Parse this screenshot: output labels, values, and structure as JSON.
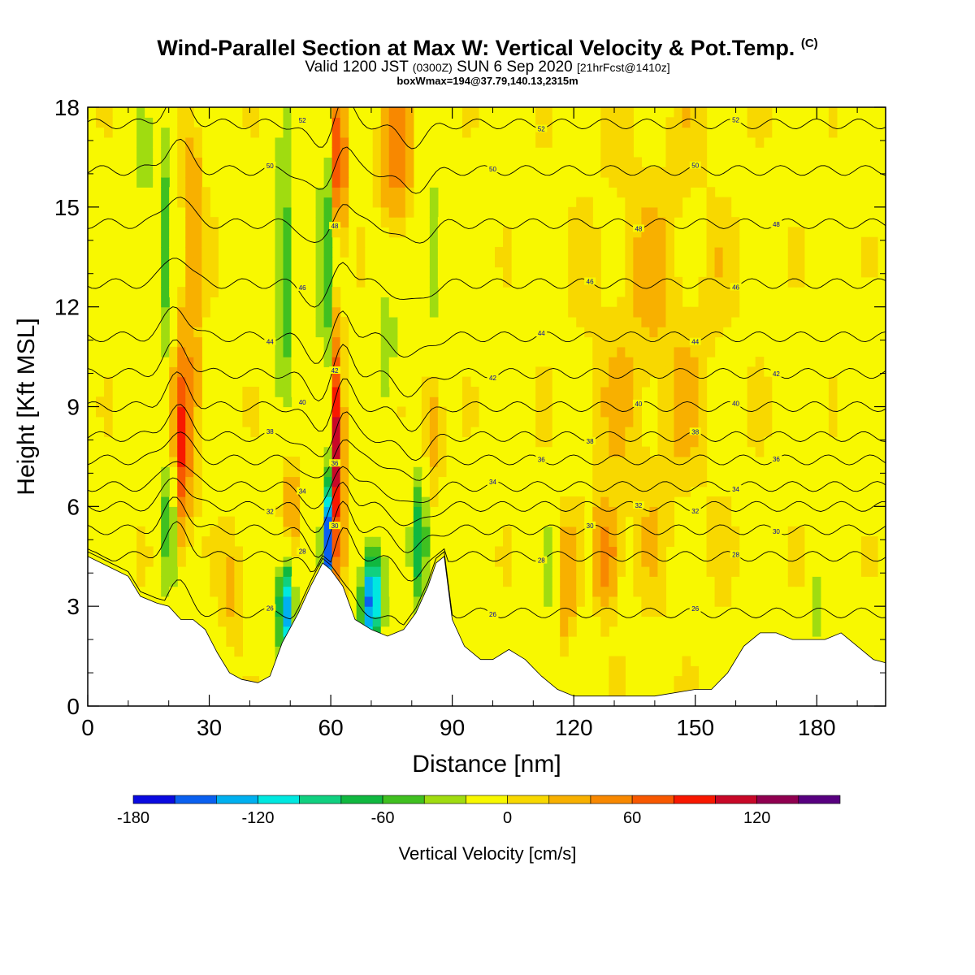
{
  "chart_data": {
    "type": "heatmap",
    "title": {
      "main": "Wind-Parallel Section at Max W: Vertical Velocity & Pot.Temp.",
      "copyright": "(C)",
      "valid_prefix": "Valid 1200 JST",
      "utc": "(0300Z)",
      "valid_date": "SUN 6 Sep 2020",
      "forecast": "[21hrFcst@1410z]",
      "box": "boxWmax=194@37.79,140.13,2315m"
    },
    "xlabel": "Distance [nm]",
    "ylabel": "Height [Kft MSL]",
    "xlim": [
      0,
      197
    ],
    "ylim": [
      0,
      18
    ],
    "x_ticks": [
      "0",
      "30",
      "60",
      "90",
      "120",
      "150",
      "180"
    ],
    "y_ticks": [
      "0",
      "3",
      "6",
      "9",
      "12",
      "15",
      "18"
    ],
    "colorbar": {
      "title": "Vertical Velocity [cm/s]",
      "levels": [
        -180,
        -160,
        -140,
        -120,
        -100,
        -80,
        -60,
        -40,
        -20,
        0,
        20,
        40,
        60,
        80,
        100,
        120,
        140,
        160
      ],
      "tick_labels": [
        "-180",
        "-120",
        "-60",
        "0",
        "60",
        "120"
      ],
      "colors": [
        "#0a0ae0",
        "#0a60f0",
        "#00b0f0",
        "#00e8e0",
        "#10d080",
        "#10b840",
        "#40c020",
        "#a0dc10",
        "#f8f800",
        "#f8d800",
        "#f8b000",
        "#f88800",
        "#f85800",
        "#f81800",
        "#c80828",
        "#900050",
        "#580080"
      ]
    },
    "background_color": "#f8f800",
    "terrain": [
      [
        0,
        4.5
      ],
      [
        5,
        4.2
      ],
      [
        10,
        3.9
      ],
      [
        13,
        3.3
      ],
      [
        17,
        3.1
      ],
      [
        20,
        3.0
      ],
      [
        23,
        2.6
      ],
      [
        26,
        2.6
      ],
      [
        29,
        2.3
      ],
      [
        32,
        1.6
      ],
      [
        35,
        1.0
      ],
      [
        38,
        0.8
      ],
      [
        42,
        0.7
      ],
      [
        45,
        0.9
      ],
      [
        48,
        1.9
      ],
      [
        52,
        2.8
      ],
      [
        55,
        3.6
      ],
      [
        58,
        4.3
      ],
      [
        60,
        4.1
      ],
      [
        63,
        3.6
      ],
      [
        66,
        2.6
      ],
      [
        70,
        2.3
      ],
      [
        74,
        2.1
      ],
      [
        78,
        2.3
      ],
      [
        81,
        2.8
      ],
      [
        84,
        3.6
      ],
      [
        86,
        4.3
      ],
      [
        88,
        4.5
      ],
      [
        90,
        2.6
      ],
      [
        93,
        1.8
      ],
      [
        97,
        1.4
      ],
      [
        100,
        1.4
      ],
      [
        104,
        1.7
      ],
      [
        108,
        1.4
      ],
      [
        112,
        0.9
      ],
      [
        116,
        0.5
      ],
      [
        120,
        0.3
      ],
      [
        124,
        0.3
      ],
      [
        130,
        0.3
      ],
      [
        140,
        0.3
      ],
      [
        150,
        0.5
      ],
      [
        154,
        0.5
      ],
      [
        158,
        1.0
      ],
      [
        162,
        1.8
      ],
      [
        166,
        2.2
      ],
      [
        170,
        2.2
      ],
      [
        174,
        2.0
      ],
      [
        178,
        2.0
      ],
      [
        182,
        2.0
      ],
      [
        186,
        2.2
      ],
      [
        190,
        1.8
      ],
      [
        194,
        1.4
      ],
      [
        197,
        1.3
      ]
    ],
    "updrafts": [
      {
        "x": 23,
        "y": 7.5,
        "w": 60,
        "hx": 2.0,
        "hy": 3.0
      },
      {
        "x": 25,
        "y": 9.5,
        "w": 30,
        "hx": 3.5,
        "hy": 4.0
      },
      {
        "x": 26,
        "y": 15,
        "w": 30,
        "hx": 3.0,
        "hy": 2.5
      },
      {
        "x": 36,
        "y": 3.5,
        "w": 25,
        "hx": 3.0,
        "hy": 2.0
      },
      {
        "x": 50,
        "y": 6.5,
        "w": 30,
        "hx": 2.5,
        "hy": 3.0
      },
      {
        "x": 61.5,
        "y": 7.0,
        "w": 120,
        "hx": 1.5,
        "hy": 4.5
      },
      {
        "x": 62,
        "y": 16.5,
        "w": 100,
        "hx": 1.5,
        "hy": 2.0
      },
      {
        "x": 76,
        "y": 16.5,
        "w": 50,
        "hx": 4.0,
        "hy": 2.5
      },
      {
        "x": 85,
        "y": 8.5,
        "w": 40,
        "hx": 3.0,
        "hy": 2.0
      },
      {
        "x": 128,
        "y": 4.5,
        "w": 60,
        "hx": 3.0,
        "hy": 1.5
      },
      {
        "x": 118,
        "y": 3.5,
        "w": 30,
        "hx": 2.0,
        "hy": 2.0
      },
      {
        "x": 140,
        "y": 11,
        "w": 20,
        "hx": 20,
        "hy": 8.0
      }
    ],
    "downdrafts": [
      {
        "x": 20,
        "y": 5.5,
        "w": -70,
        "hx": 1.5,
        "hy": 2.0
      },
      {
        "x": 19,
        "y": 14,
        "w": -50,
        "hx": 1.8,
        "hy": 4.0
      },
      {
        "x": 14,
        "y": 16,
        "w": -35,
        "hx": 1.5,
        "hy": 2.0
      },
      {
        "x": 49,
        "y": 3.0,
        "w": -150,
        "hx": 2.0,
        "hy": 1.5
      },
      {
        "x": 49,
        "y": 13,
        "w": -60,
        "hx": 2.5,
        "hy": 4.0
      },
      {
        "x": 59.5,
        "y": 5.0,
        "w": -160,
        "hx": 1.3,
        "hy": 2.0
      },
      {
        "x": 59,
        "y": 13,
        "w": -50,
        "hx": 2.0,
        "hy": 5.0
      },
      {
        "x": 70,
        "y": 3.2,
        "w": -160,
        "hx": 2.5,
        "hy": 1.5
      },
      {
        "x": 82,
        "y": 5.0,
        "w": -90,
        "hx": 2.0,
        "hy": 2.0
      },
      {
        "x": 74,
        "y": 10.5,
        "w": -40,
        "hx": 2.0,
        "hy": 2.0
      },
      {
        "x": 86,
        "y": 13.5,
        "w": -50,
        "hx": 1.5,
        "hy": 2.5
      },
      {
        "x": 113,
        "y": 4.0,
        "w": -40,
        "hx": 1.0,
        "hy": 1.5
      },
      {
        "x": 124,
        "y": 5.0,
        "w": -40,
        "hx": 1.0,
        "hy": 1.5
      },
      {
        "x": 171,
        "y": 15.0,
        "w": -35,
        "hx": 0.8,
        "hy": 1.5
      },
      {
        "x": 180,
        "y": 3.0,
        "w": -40,
        "hx": 1.0,
        "hy": 1.0
      }
    ],
    "theta_contours": [
      {
        "label": "26",
        "y": 2.8
      },
      {
        "label": "28",
        "y": 4.5
      },
      {
        "label": "30",
        "y": 5.3
      },
      {
        "label": "32",
        "y": 6.0
      },
      {
        "label": "34",
        "y": 6.6
      },
      {
        "label": "36",
        "y": 7.4
      },
      {
        "label": "38",
        "y": 8.1
      },
      {
        "label": "40",
        "y": 9.0
      },
      {
        "label": "42",
        "y": 10.0
      },
      {
        "label": "44",
        "y": 11.1
      },
      {
        "label": "46",
        "y": 12.7
      },
      {
        "label": "48",
        "y": 14.5
      },
      {
        "label": "50",
        "y": 16.1
      },
      {
        "label": "52",
        "y": 17.5
      }
    ]
  }
}
